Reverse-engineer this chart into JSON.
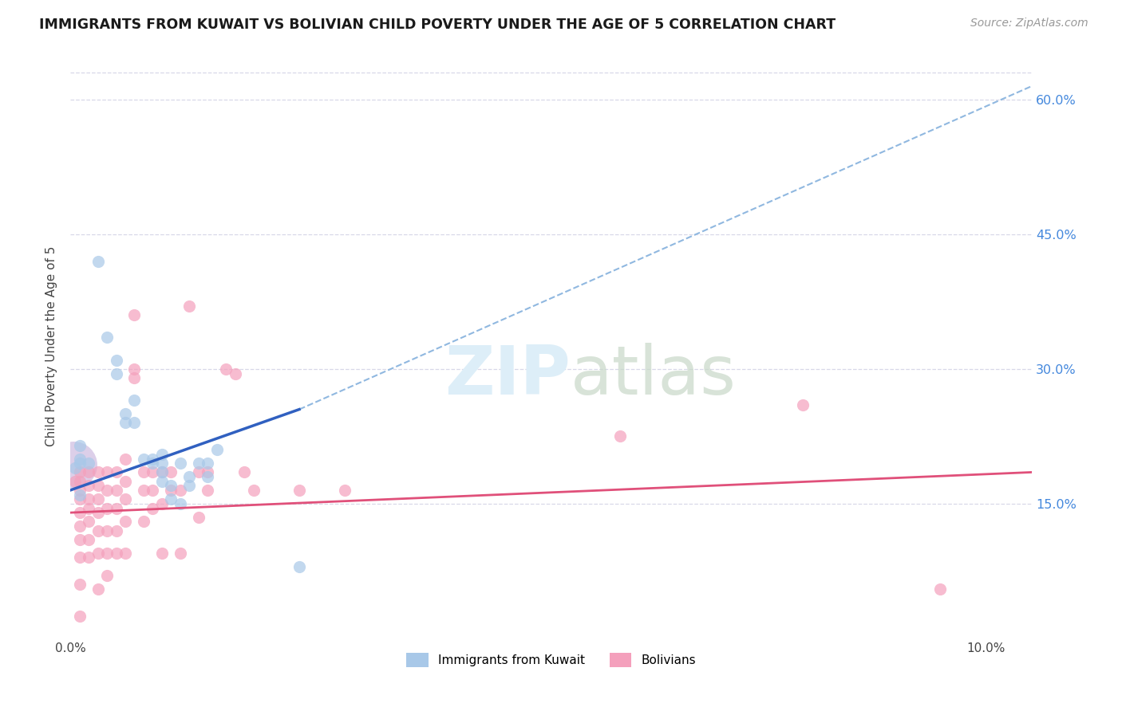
{
  "title": "IMMIGRANTS FROM KUWAIT VS BOLIVIAN CHILD POVERTY UNDER THE AGE OF 5 CORRELATION CHART",
  "source": "Source: ZipAtlas.com",
  "ylabel": "Child Poverty Under the Age of 5",
  "xlim": [
    0.0,
    0.105
  ],
  "ylim": [
    0.0,
    0.65
  ],
  "yticks": [
    0.15,
    0.3,
    0.45,
    0.6
  ],
  "right_ytick_labels": [
    "15.0%",
    "30.0%",
    "45.0%",
    "60.0%"
  ],
  "xtick_labels": [
    "0.0%",
    "10.0%"
  ],
  "xtick_vals": [
    0.0,
    0.1
  ],
  "color_blue": "#a8c8e8",
  "color_pink": "#f4a0bc",
  "line_blue": "#3060c0",
  "line_pink": "#e0507a",
  "dashed_color": "#90b8e0",
  "watermark_color": "#ddeef8",
  "grid_color": "#d8d8e8",
  "background": "#ffffff",
  "large_circle_color": "#c0a8d8",
  "kuwait_points": [
    [
      0.0005,
      0.19
    ],
    [
      0.001,
      0.215
    ],
    [
      0.001,
      0.195
    ],
    [
      0.001,
      0.2
    ],
    [
      0.002,
      0.195
    ],
    [
      0.003,
      0.42
    ],
    [
      0.004,
      0.335
    ],
    [
      0.005,
      0.295
    ],
    [
      0.005,
      0.31
    ],
    [
      0.006,
      0.25
    ],
    [
      0.006,
      0.24
    ],
    [
      0.007,
      0.265
    ],
    [
      0.007,
      0.24
    ],
    [
      0.008,
      0.2
    ],
    [
      0.009,
      0.2
    ],
    [
      0.009,
      0.195
    ],
    [
      0.01,
      0.195
    ],
    [
      0.01,
      0.205
    ],
    [
      0.01,
      0.185
    ],
    [
      0.01,
      0.175
    ],
    [
      0.011,
      0.17
    ],
    [
      0.011,
      0.155
    ],
    [
      0.012,
      0.15
    ],
    [
      0.012,
      0.195
    ],
    [
      0.013,
      0.18
    ],
    [
      0.013,
      0.17
    ],
    [
      0.014,
      0.195
    ],
    [
      0.015,
      0.195
    ],
    [
      0.015,
      0.18
    ],
    [
      0.016,
      0.21
    ],
    [
      0.001,
      0.16
    ],
    [
      0.025,
      0.08
    ]
  ],
  "bolivian_points": [
    [
      0.0005,
      0.175
    ],
    [
      0.001,
      0.185
    ],
    [
      0.001,
      0.175
    ],
    [
      0.001,
      0.165
    ],
    [
      0.001,
      0.155
    ],
    [
      0.001,
      0.14
    ],
    [
      0.001,
      0.125
    ],
    [
      0.001,
      0.11
    ],
    [
      0.001,
      0.09
    ],
    [
      0.001,
      0.06
    ],
    [
      0.001,
      0.025
    ],
    [
      0.002,
      0.185
    ],
    [
      0.002,
      0.17
    ],
    [
      0.002,
      0.155
    ],
    [
      0.002,
      0.145
    ],
    [
      0.002,
      0.13
    ],
    [
      0.002,
      0.11
    ],
    [
      0.002,
      0.09
    ],
    [
      0.003,
      0.185
    ],
    [
      0.003,
      0.17
    ],
    [
      0.003,
      0.155
    ],
    [
      0.003,
      0.14
    ],
    [
      0.003,
      0.12
    ],
    [
      0.003,
      0.095
    ],
    [
      0.003,
      0.055
    ],
    [
      0.004,
      0.185
    ],
    [
      0.004,
      0.165
    ],
    [
      0.004,
      0.145
    ],
    [
      0.004,
      0.12
    ],
    [
      0.004,
      0.095
    ],
    [
      0.004,
      0.07
    ],
    [
      0.005,
      0.185
    ],
    [
      0.005,
      0.165
    ],
    [
      0.005,
      0.145
    ],
    [
      0.005,
      0.12
    ],
    [
      0.005,
      0.095
    ],
    [
      0.006,
      0.2
    ],
    [
      0.006,
      0.175
    ],
    [
      0.006,
      0.155
    ],
    [
      0.006,
      0.13
    ],
    [
      0.006,
      0.095
    ],
    [
      0.007,
      0.29
    ],
    [
      0.007,
      0.3
    ],
    [
      0.007,
      0.36
    ],
    [
      0.008,
      0.185
    ],
    [
      0.008,
      0.165
    ],
    [
      0.008,
      0.13
    ],
    [
      0.009,
      0.185
    ],
    [
      0.009,
      0.165
    ],
    [
      0.009,
      0.145
    ],
    [
      0.01,
      0.185
    ],
    [
      0.01,
      0.15
    ],
    [
      0.01,
      0.095
    ],
    [
      0.011,
      0.185
    ],
    [
      0.011,
      0.165
    ],
    [
      0.012,
      0.165
    ],
    [
      0.012,
      0.095
    ],
    [
      0.013,
      0.37
    ],
    [
      0.014,
      0.185
    ],
    [
      0.014,
      0.135
    ],
    [
      0.015,
      0.185
    ],
    [
      0.015,
      0.165
    ],
    [
      0.017,
      0.3
    ],
    [
      0.018,
      0.295
    ],
    [
      0.019,
      0.185
    ],
    [
      0.02,
      0.165
    ],
    [
      0.025,
      0.165
    ],
    [
      0.03,
      0.165
    ],
    [
      0.06,
      0.225
    ],
    [
      0.08,
      0.26
    ],
    [
      0.095,
      0.055
    ]
  ],
  "blue_line_solid": [
    [
      0.0,
      0.165
    ],
    [
      0.025,
      0.255
    ]
  ],
  "blue_line_dashed": [
    [
      0.025,
      0.255
    ],
    [
      0.105,
      0.615
    ]
  ],
  "pink_line": [
    [
      0.0,
      0.14
    ],
    [
      0.105,
      0.185
    ]
  ]
}
